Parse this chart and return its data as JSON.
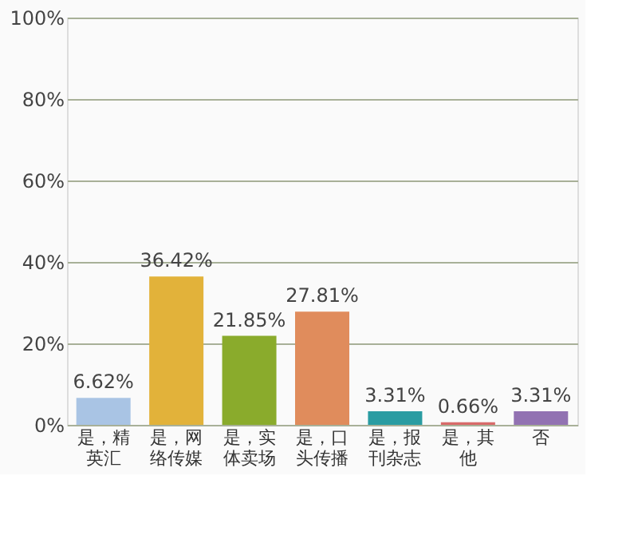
{
  "chart_data": {
    "type": "bar",
    "categories": [
      "是，精英汇",
      "是，网络传媒",
      "是，实体卖场",
      "是，口头传播",
      "是，报刊杂志",
      "是，其他",
      "否"
    ],
    "values": [
      6.62,
      36.42,
      21.85,
      27.81,
      3.31,
      0.66,
      3.31
    ],
    "colors": [
      "#a9c4e4",
      "#e2b23a",
      "#8aab2c",
      "#e08c5c",
      "#2a9ca2",
      "#d86a6a",
      "#9272b2"
    ],
    "value_labels": [
      "6.62%",
      "36.42%",
      "21.85%",
      "27.81%",
      "3.31%",
      "0.66%",
      "3.31%"
    ],
    "ylim": [
      0,
      100
    ],
    "yticks": [
      {
        "value": 0,
        "label": "0%"
      },
      {
        "value": 20,
        "label": "20%"
      },
      {
        "value": 40,
        "label": "40%"
      },
      {
        "value": 60,
        "label": "60%"
      },
      {
        "value": 80,
        "label": "80%"
      },
      {
        "value": 100,
        "label": "100%"
      }
    ],
    "grid": "y"
  }
}
